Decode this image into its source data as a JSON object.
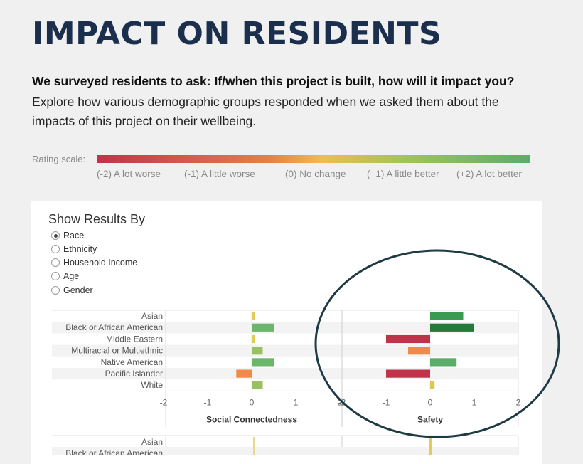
{
  "page": {
    "title": "IMPACT ON RESIDENTS",
    "intro_bold": "We surveyed residents to ask: If/when this project is built, how will it impact you?",
    "intro_text": "Explore how various demographic groups responded when we asked them about the impacts of this project on their wellbeing."
  },
  "scale": {
    "label": "Rating scale:",
    "ticks": [
      "(-2) A lot worse",
      "(-1) A little worse",
      "(0) No change",
      "(+1) A little better",
      "(+2) A lot better"
    ],
    "colors": [
      "#c0334a",
      "#e0834a",
      "#f2ba55",
      "#a4c45c",
      "#5aae68"
    ]
  },
  "filter": {
    "title": "Show Results By",
    "options": [
      "Race",
      "Ethnicity",
      "Household Income",
      "Age",
      "Gender"
    ],
    "selected": "Race"
  },
  "chart_data": [
    {
      "type": "bar",
      "orientation": "horizontal",
      "categories": [
        "Asian",
        "Black or African American",
        "Middle Eastern",
        "Multiracial or Multiethnic",
        "Native American",
        "Pacific Islander",
        "White"
      ],
      "xlabel": "Social Connectedness",
      "xlim": [
        -2,
        2
      ],
      "xticks": [
        "-2",
        "-1",
        "0",
        "1",
        "2"
      ],
      "values": [
        0.05,
        0.5,
        0.05,
        0.25,
        0.5,
        -0.35,
        0.25
      ],
      "colors": [
        "#e3cc55",
        "#6bb66a",
        "#e3cc55",
        "#98c160",
        "#6bb66a",
        "#f08a4b",
        "#98c160"
      ]
    },
    {
      "type": "bar",
      "orientation": "horizontal",
      "categories": [
        "Asian",
        "Black or African American",
        "Middle Eastern",
        "Multiracial or Multiethnic",
        "Native American",
        "Pacific Islander",
        "White"
      ],
      "xlabel": "Safety",
      "xlim": [
        -2,
        2
      ],
      "xticks": [
        "-2",
        "-1",
        "0",
        "1",
        "2"
      ],
      "values": [
        0.75,
        1.0,
        -1.0,
        -0.5,
        0.6,
        -1.0,
        0.1
      ],
      "colors": [
        "#3a9a52",
        "#257a3b",
        "#c0334a",
        "#f08a4b",
        "#5aae68",
        "#c0334a",
        "#d9c94e"
      ]
    }
  ],
  "lower_chart": {
    "categories": [
      "Asian",
      "Black or African American"
    ]
  }
}
